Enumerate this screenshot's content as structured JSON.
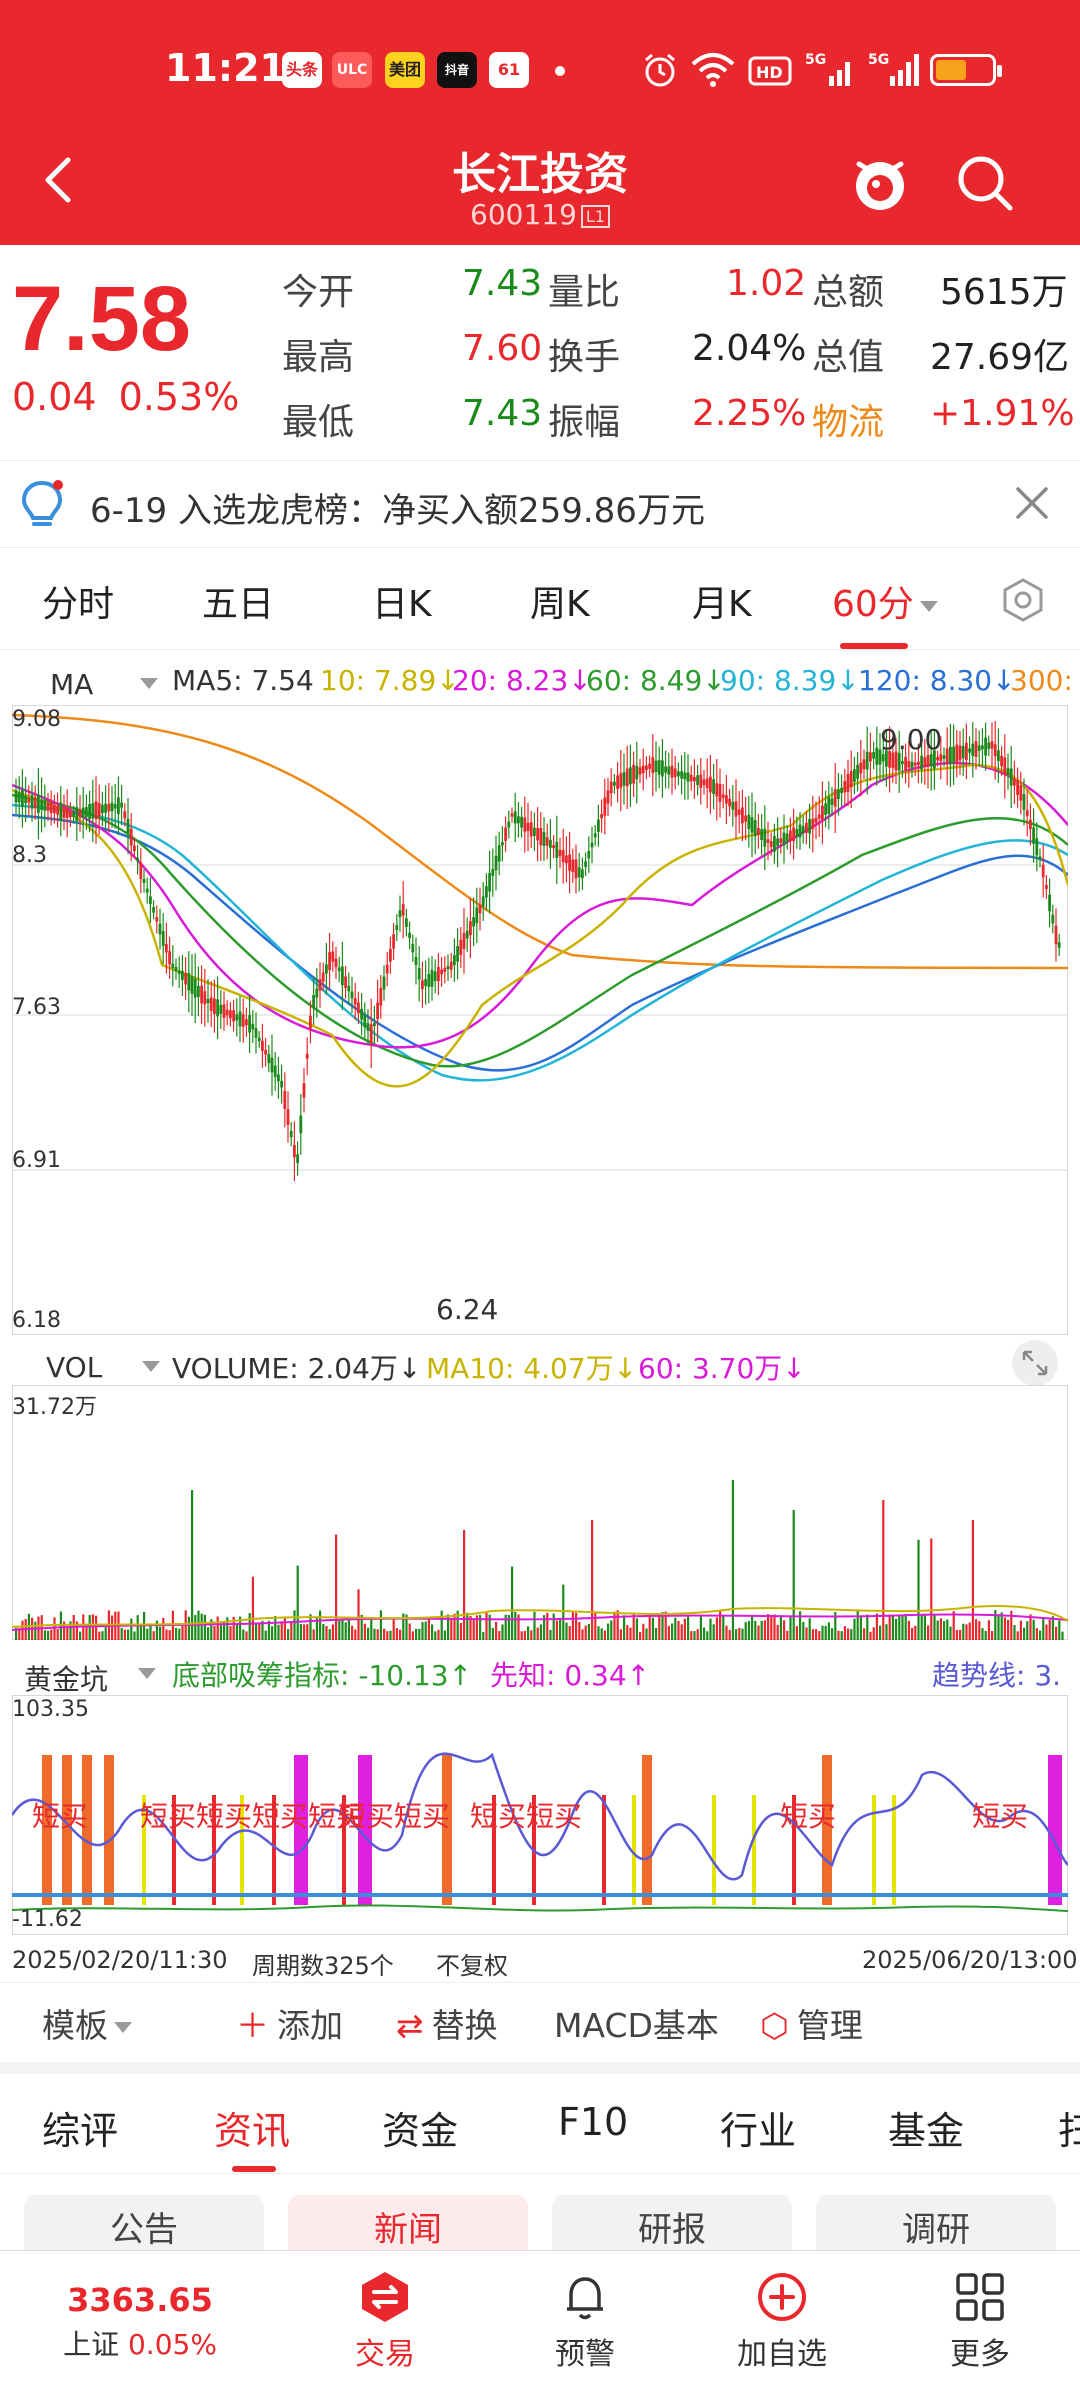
{
  "status_bar": {
    "time": "11:21",
    "apps": [
      "头条",
      "ULC",
      "美团",
      "抖音",
      "61"
    ],
    "icons": [
      "alarm-icon",
      "wifi-icon",
      "hd-icon",
      "signal-5g-icon",
      "signal-5g-icon",
      "battery-icon"
    ],
    "battery_level": 0.55
  },
  "nav": {
    "title": "长江投资",
    "code": "600119",
    "code_tag": "L1"
  },
  "quote": {
    "price": "7.58",
    "change": "0.04",
    "change_pct": "0.53%",
    "rows": [
      [
        {
          "label": "今开",
          "value": "7.43"
        },
        {
          "label": "量比",
          "value": "1.02"
        },
        {
          "label": "总额",
          "value": "5615万"
        }
      ],
      [
        {
          "label": "最高",
          "value": "7.60"
        },
        {
          "label": "换手",
          "value": "2.04%"
        },
        {
          "label": "总值",
          "value": "27.69亿"
        }
      ],
      [
        {
          "label": "最低",
          "value": "7.43"
        },
        {
          "label": "振幅",
          "value": "2.25%"
        },
        {
          "label": "物流",
          "value": "+1.91%"
        }
      ]
    ]
  },
  "notice": {
    "text": "6-19 入选龙虎榜：净买入额259.86万元"
  },
  "chart_tabs": [
    "分时",
    "五日",
    "日K",
    "周K",
    "月K",
    "60分"
  ],
  "chart_tab_active": "60分",
  "ma_legend": {
    "name": "MA",
    "ma5": "MA5: 7.54",
    "ma10": "10: 7.89↓",
    "ma20": "20: 8.23↓",
    "ma60": "60: 8.49↓",
    "ma90": "90: 8.39↓",
    "ma120": "120: 8.30↓",
    "ma300": "300:"
  },
  "kline_axis": [
    "9.08",
    "8.3",
    "7.63",
    "6.91",
    "6.18"
  ],
  "kline_marks": {
    "high": "9.00",
    "low": "6.24"
  },
  "vol_legend": {
    "name": "VOL",
    "volume": "VOLUME: 2.04万↓",
    "ma10": "MA10: 4.07万↓",
    "ma60": "60: 3.70万↓"
  },
  "vol_axis_top": "31.72万",
  "ind_legend": {
    "name": "黄金坑",
    "a": "底部吸筹指标: -10.13↑",
    "b": "先知: 0.34↑",
    "c": "趋势线: 3."
  },
  "ind_axis": {
    "top": "103.35",
    "bottom": "-11.62"
  },
  "ind_labels": [
    "短买",
    "短买短买短买短买",
    "短买短买",
    "短买短买",
    "短买",
    "短买"
  ],
  "dates": {
    "start": "2025/02/20/11:30",
    "period": "周期数325个",
    "adj": "不复权",
    "end": "2025/06/20/13:00"
  },
  "toolbar": {
    "template": "模板",
    "add": "添加",
    "replace": "替换",
    "macd": "MACD基本",
    "manage": "管理"
  },
  "info_tabs": [
    "综评",
    "资讯",
    "资金",
    "F10",
    "行业",
    "基金",
    "扫"
  ],
  "info_tab_active": "资讯",
  "sub_tabs": [
    "公告",
    "新闻",
    "研报",
    "调研"
  ],
  "sub_tab_active": "新闻",
  "bottom_bar": {
    "index_value": "3363.65",
    "index_name": "上证",
    "index_pct": "0.05%",
    "items": [
      "交易",
      "预警",
      "加自选",
      "更多"
    ]
  },
  "colors": {
    "brand_red": "#e8282d",
    "up_red": "#e8282d",
    "down_green": "#1a8a1a",
    "ma5": "#333333",
    "ma10": "#c8b400",
    "ma20": "#d81bd8",
    "ma60": "#2e9b2e",
    "ma90": "#24b5d6",
    "ma120": "#2a6fd6",
    "ma300": "#ee8a1a"
  }
}
